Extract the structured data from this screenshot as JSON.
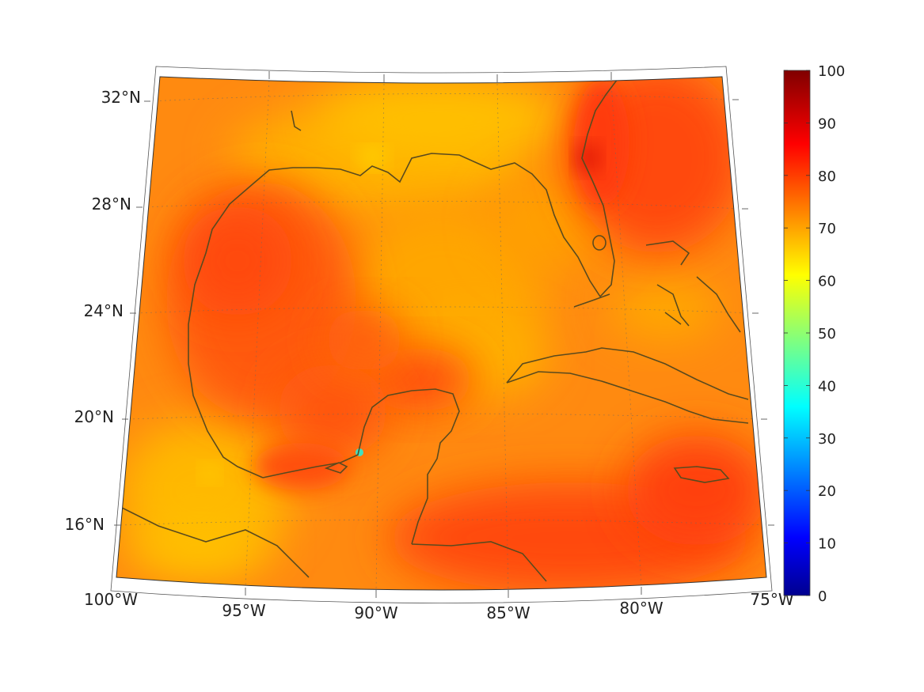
{
  "map": {
    "lat_labels": [
      "32°N",
      "28°N",
      "24°N",
      "20°N",
      "16°N"
    ],
    "lon_labels": [
      "100°W",
      "95°W",
      "90°W",
      "85°W",
      "80°W",
      "75°W"
    ]
  },
  "colorbar": {
    "ticks": [
      "100",
      "90",
      "80",
      "70",
      "60",
      "50",
      "40",
      "30",
      "20",
      "10",
      "0"
    ],
    "min": 0,
    "max": 100,
    "colormap": "jet"
  },
  "field": {
    "dominant_range": [
      65,
      85
    ],
    "local_minimum_value": 40
  },
  "colors": {
    "coast": "#5a4a1e",
    "background_field": "#ff8a10",
    "frame": "#333333"
  }
}
